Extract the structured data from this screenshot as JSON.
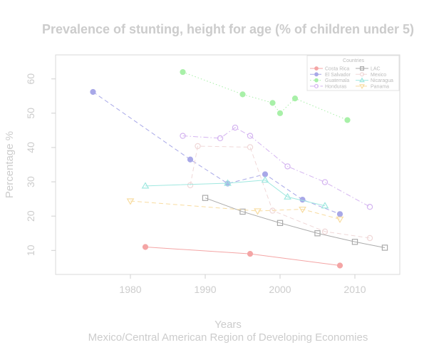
{
  "chart_data": {
    "type": "line",
    "title": "Prevalence of stunting, height for age (% of children under 5)",
    "xlabel": "Years",
    "subtitle": "Mexico/Central American Region of Developing Economies",
    "ylabel": "Percentage %",
    "xlim": [
      1970,
      2016
    ],
    "ylim": [
      3,
      67
    ],
    "xticks": [
      1980,
      1990,
      2000,
      2010
    ],
    "yticks": [
      10,
      20,
      30,
      40,
      50,
      60
    ],
    "legend": {
      "title": "Countries",
      "placement": "top-right"
    },
    "series": [
      {
        "name": "Costa Rica",
        "color": "#f4a5a5",
        "marker": "circle-filled",
        "dash": "solid",
        "x": [
          1982,
          1996,
          2008
        ],
        "y": [
          11.0,
          9.0,
          5.6
        ]
      },
      {
        "name": "El Salvador",
        "color": "#a8a8e8",
        "marker": "circle-filled",
        "dash": "dashed",
        "x": [
          1975,
          1988,
          1993,
          1998,
          2003,
          2008
        ],
        "y": [
          56.2,
          36.5,
          29.5,
          32.2,
          24.8,
          20.6
        ]
      },
      {
        "name": "Guatemala",
        "color": "#a8f0a8",
        "marker": "circle-filled",
        "dash": "dotted",
        "x": [
          1987,
          1995,
          1999,
          2000,
          2002,
          2009
        ],
        "y": [
          62.0,
          55.5,
          53.0,
          50.0,
          54.3,
          48.0
        ]
      },
      {
        "name": "Honduras",
        "color": "#d4b4f0",
        "marker": "circle-open",
        "dash": "dashdot",
        "x": [
          1987,
          1992,
          1994,
          1996,
          2001,
          2006,
          2012
        ],
        "y": [
          43.4,
          42.7,
          45.8,
          43.4,
          34.5,
          29.9,
          22.7
        ]
      },
      {
        "name": "LAC",
        "color": "#aaaaaa",
        "marker": "square-open",
        "dash": "solid",
        "x": [
          1990,
          1995,
          2000,
          2005,
          2010,
          2014
        ],
        "y": [
          25.3,
          21.3,
          18.0,
          15.0,
          12.5,
          10.8
        ]
      },
      {
        "name": "Mexico",
        "color": "#f0d8d8",
        "marker": "circle-open",
        "dash": "dashed",
        "x": [
          1988,
          1989,
          1996,
          1999,
          2006,
          2012
        ],
        "y": [
          29.0,
          40.4,
          40.1,
          21.6,
          15.5,
          13.6
        ]
      },
      {
        "name": "Nicaragua",
        "color": "#a0e8e0",
        "marker": "triangle-open",
        "dash": "solid",
        "x": [
          1982,
          1993,
          1998,
          2001,
          2006
        ],
        "y": [
          28.8,
          29.6,
          30.5,
          25.6,
          23.0
        ]
      },
      {
        "name": "Panama",
        "color": "#f8dca0",
        "marker": "triangle-down-open",
        "dash": "dashed",
        "x": [
          1980,
          1997,
          2003,
          2008
        ],
        "y": [
          24.4,
          21.5,
          22.0,
          19.1
        ]
      }
    ]
  }
}
